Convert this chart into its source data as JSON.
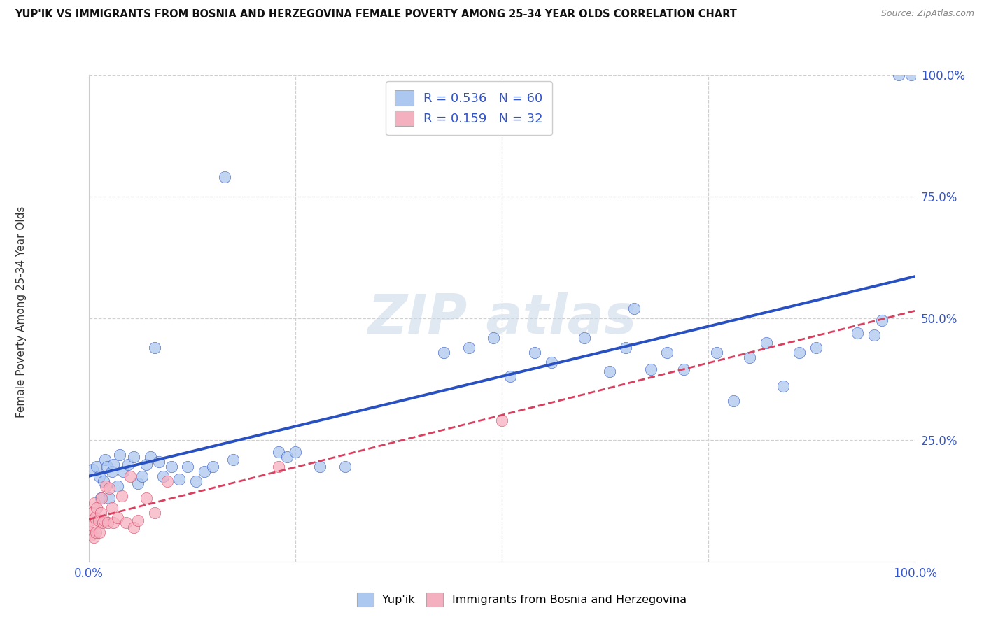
{
  "title": "YUP'IK VS IMMIGRANTS FROM BOSNIA AND HERZEGOVINA FEMALE POVERTY AMONG 25-34 YEAR OLDS CORRELATION CHART",
  "source": "Source: ZipAtlas.com",
  "ylabel": "Female Poverty Among 25-34 Year Olds",
  "legend_label1": "Yup'ik",
  "legend_label2": "Immigrants from Bosnia and Herzegovina",
  "R1": 0.536,
  "N1": 60,
  "R2": 0.159,
  "N2": 32,
  "color1": "#adc8f0",
  "color2": "#f5b0c0",
  "line_color1": "#2850c0",
  "line_color2": "#d84060",
  "background": "#ffffff",
  "grid_color": "#d0d0d0",
  "tick_color": "#3355cc",
  "blue_x": [
    0.005,
    0.01,
    0.013,
    0.015,
    0.018,
    0.02,
    0.022,
    0.025,
    0.028,
    0.03,
    0.035,
    0.038,
    0.042,
    0.048,
    0.055,
    0.06,
    0.065,
    0.07,
    0.075,
    0.08,
    0.085,
    0.09,
    0.1,
    0.11,
    0.12,
    0.13,
    0.14,
    0.15,
    0.165,
    0.175,
    0.23,
    0.24,
    0.25,
    0.28,
    0.31,
    0.43,
    0.46,
    0.49,
    0.51,
    0.54,
    0.56,
    0.6,
    0.63,
    0.65,
    0.66,
    0.68,
    0.7,
    0.72,
    0.76,
    0.78,
    0.8,
    0.82,
    0.84,
    0.86,
    0.88,
    0.93,
    0.95,
    0.96,
    0.98,
    0.995
  ],
  "blue_y": [
    0.19,
    0.195,
    0.175,
    0.13,
    0.165,
    0.21,
    0.195,
    0.13,
    0.185,
    0.2,
    0.155,
    0.22,
    0.185,
    0.2,
    0.215,
    0.16,
    0.175,
    0.2,
    0.215,
    0.44,
    0.205,
    0.175,
    0.195,
    0.17,
    0.195,
    0.165,
    0.185,
    0.195,
    0.79,
    0.21,
    0.225,
    0.215,
    0.225,
    0.195,
    0.195,
    0.43,
    0.44,
    0.46,
    0.38,
    0.43,
    0.41,
    0.46,
    0.39,
    0.44,
    0.52,
    0.395,
    0.43,
    0.395,
    0.43,
    0.33,
    0.42,
    0.45,
    0.36,
    0.43,
    0.44,
    0.47,
    0.465,
    0.495,
    1.0,
    1.0
  ],
  "pink_x": [
    0.0,
    0.002,
    0.003,
    0.004,
    0.005,
    0.006,
    0.007,
    0.008,
    0.009,
    0.01,
    0.012,
    0.013,
    0.015,
    0.016,
    0.017,
    0.019,
    0.021,
    0.023,
    0.025,
    0.028,
    0.03,
    0.035,
    0.04,
    0.045,
    0.05,
    0.055,
    0.06,
    0.07,
    0.08,
    0.095,
    0.23,
    0.5
  ],
  "pink_y": [
    0.06,
    0.085,
    0.055,
    0.1,
    0.075,
    0.05,
    0.12,
    0.09,
    0.06,
    0.11,
    0.085,
    0.06,
    0.1,
    0.13,
    0.08,
    0.085,
    0.155,
    0.08,
    0.15,
    0.11,
    0.08,
    0.09,
    0.135,
    0.08,
    0.175,
    0.07,
    0.085,
    0.13,
    0.1,
    0.165,
    0.195,
    0.29
  ]
}
